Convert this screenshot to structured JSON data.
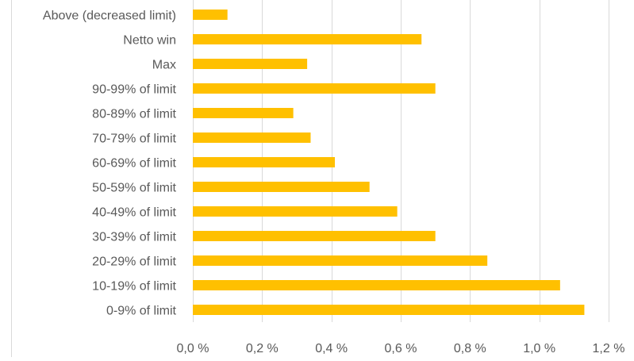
{
  "chart_data": {
    "type": "bar",
    "orientation": "horizontal",
    "categories": [
      "Above (decreased limit)",
      "Netto win",
      "Max",
      "90-99% of limit",
      "80-89% of limit",
      "70-79% of limit",
      "60-69% of limit",
      "50-59% of limit",
      "40-49% of limit",
      "30-39% of limit",
      "20-29% of limit",
      "10-19% of limit",
      "0-9% of limit"
    ],
    "values": [
      0.1,
      0.66,
      0.33,
      0.7,
      0.29,
      0.34,
      0.41,
      0.51,
      0.59,
      0.7,
      0.85,
      1.06,
      1.13
    ],
    "xlim": [
      0,
      1.2
    ],
    "x_ticks": [
      0,
      0.2,
      0.4,
      0.6,
      0.8,
      1.0,
      1.2
    ],
    "x_tick_labels": [
      "0,0 %",
      "0,2 %",
      "0,4 %",
      "0,6 %",
      "0,8 %",
      "1,0 %",
      "1,2 %"
    ],
    "grid": "vertical",
    "bar_color": "#FFC000",
    "grid_color": "#d9d9d9",
    "text_color": "#595959"
  }
}
